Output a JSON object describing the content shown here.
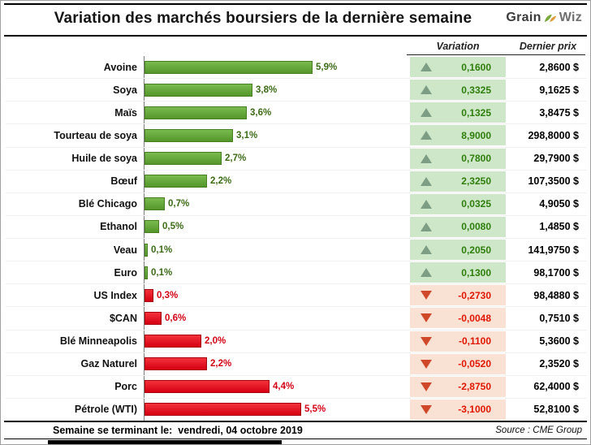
{
  "title": "Variation des marchés boursiers de la dernière semaine",
  "logo": {
    "part1": "Grain",
    "part2": "Wiz"
  },
  "columns": {
    "variation": "Variation",
    "price": "Dernier prix"
  },
  "rows": [
    {
      "label": "Avoine",
      "pct": 5.9,
      "pct_label": "5,9%",
      "direction": "up",
      "variation": "0,1600",
      "price": "2,8600 $"
    },
    {
      "label": "Soya",
      "pct": 3.8,
      "pct_label": "3,8%",
      "direction": "up",
      "variation": "0,3325",
      "price": "9,1625 $"
    },
    {
      "label": "Maïs",
      "pct": 3.6,
      "pct_label": "3,6%",
      "direction": "up",
      "variation": "0,1325",
      "price": "3,8475 $"
    },
    {
      "label": "Tourteau de soya",
      "pct": 3.1,
      "pct_label": "3,1%",
      "direction": "up",
      "variation": "8,9000",
      "price": "298,8000 $"
    },
    {
      "label": "Huile de soya",
      "pct": 2.7,
      "pct_label": "2,7%",
      "direction": "up",
      "variation": "0,7800",
      "price": "29,7900 $"
    },
    {
      "label": "Bœuf",
      "pct": 2.2,
      "pct_label": "2,2%",
      "direction": "up",
      "variation": "2,3250",
      "price": "107,3500 $"
    },
    {
      "label": "Blé Chicago",
      "pct": 0.7,
      "pct_label": "0,7%",
      "direction": "up",
      "variation": "0,0325",
      "price": "4,9050 $"
    },
    {
      "label": "Ethanol",
      "pct": 0.5,
      "pct_label": "0,5%",
      "direction": "up",
      "variation": "0,0080",
      "price": "1,4850 $"
    },
    {
      "label": "Veau",
      "pct": 0.1,
      "pct_label": "0,1%",
      "direction": "up",
      "variation": "0,2050",
      "price": "141,9750 $"
    },
    {
      "label": "Euro",
      "pct": 0.1,
      "pct_label": "0,1%",
      "direction": "up",
      "variation": "0,1300",
      "price": "98,1700 $"
    },
    {
      "label": "US Index",
      "pct": 0.3,
      "pct_label": "0,3%",
      "direction": "down",
      "variation": "-0,2730",
      "price": "98,4880 $"
    },
    {
      "label": "$CAN",
      "pct": 0.6,
      "pct_label": "0,6%",
      "direction": "down",
      "variation": "-0,0048",
      "price": "0,7510 $"
    },
    {
      "label": "Blé Minneapolis",
      "pct": 2.0,
      "pct_label": "2,0%",
      "direction": "down",
      "variation": "-0,1100",
      "price": "5,3600 $"
    },
    {
      "label": "Gaz Naturel",
      "pct": 2.2,
      "pct_label": "2,2%",
      "direction": "down",
      "variation": "-0,0520",
      "price": "2,3520 $"
    },
    {
      "label": "Porc",
      "pct": 4.4,
      "pct_label": "4,4%",
      "direction": "down",
      "variation": "-2,8750",
      "price": "62,4000 $"
    },
    {
      "label": "Pétrole (WTI)",
      "pct": 5.5,
      "pct_label": "5,5%",
      "direction": "down",
      "variation": "-3,1000",
      "price": "52,8100 $"
    }
  ],
  "chart_data": {
    "type": "bar",
    "orientation": "horizontal",
    "title": "Variation des marchés boursiers de la dernière semaine",
    "categories": [
      "Avoine",
      "Soya",
      "Maïs",
      "Tourteau de soya",
      "Huile de soya",
      "Bœuf",
      "Blé Chicago",
      "Ethanol",
      "Veau",
      "Euro",
      "US Index",
      "$CAN",
      "Blé Minneapolis",
      "Gaz Naturel",
      "Porc",
      "Pétrole (WTI)"
    ],
    "series": [
      {
        "name": "Variation hebdomadaire (%)",
        "values": [
          5.9,
          3.8,
          3.6,
          3.1,
          2.7,
          2.2,
          0.7,
          0.5,
          0.1,
          0.1,
          -0.3,
          -0.6,
          -2.0,
          -2.2,
          -4.4,
          -5.5
        ]
      },
      {
        "name": "Variation ($)",
        "values": [
          0.16,
          0.3325,
          0.1325,
          8.9,
          0.78,
          2.325,
          0.0325,
          0.008,
          0.205,
          0.13,
          -0.273,
          -0.0048,
          -0.11,
          -0.052,
          -2.875,
          -3.1
        ]
      },
      {
        "name": "Dernier prix ($)",
        "values": [
          2.86,
          9.1625,
          3.8475,
          298.8,
          29.79,
          107.35,
          4.905,
          1.485,
          141.975,
          98.17,
          98.488,
          0.751,
          5.36,
          2.352,
          62.4,
          52.81
        ]
      }
    ],
    "value_labels": [
      "5,9%",
      "3,8%",
      "3,6%",
      "3,1%",
      "2,7%",
      "2,2%",
      "0,7%",
      "0,5%",
      "0,1%",
      "0,1%",
      "0,3%",
      "0,6%",
      "2,0%",
      "2,2%",
      "4,4%",
      "5,5%"
    ],
    "xlabel": "",
    "ylabel": "",
    "xlim": [
      0,
      6.2
    ],
    "grid": false,
    "legend": false,
    "bars_drawn_as_magnitude": true
  },
  "colors": {
    "bar_positive": "#5ea431",
    "bar_negative": "#e90016",
    "cell_positive_bg": "#cde7c8",
    "cell_negative_bg": "#f9e1d4",
    "text_positive": "#2f7e0c",
    "text_negative": "#e01600",
    "triangle_up": "#7e9d85",
    "triangle_down": "#d0482a"
  },
  "footer": {
    "ending_label": "Semaine se terminant le:",
    "ending_date": "vendredi, 04 octobre 2019",
    "source": "Source : CME Group"
  }
}
